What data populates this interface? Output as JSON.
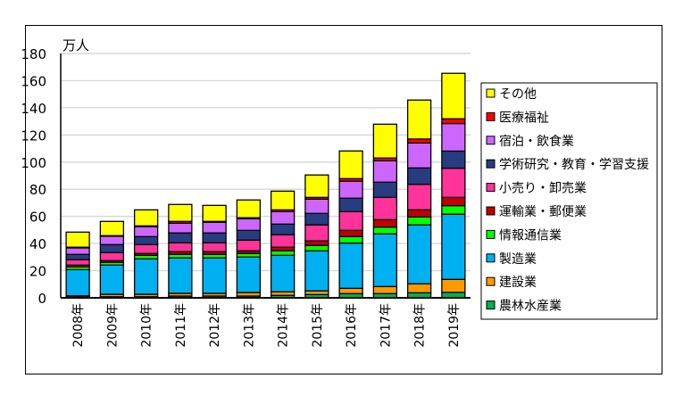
{
  "chart_data": {
    "type": "bar",
    "stacked": true,
    "unit_label": "万人",
    "categories": [
      "2008年",
      "2009年",
      "2010年",
      "2011年",
      "2012年",
      "2013年",
      "2014年",
      "2015年",
      "2016年",
      "2017年",
      "2018年",
      "2019年"
    ],
    "ylim": [
      0,
      180
    ],
    "yticks": [
      0,
      20,
      40,
      60,
      80,
      100,
      120,
      140,
      160,
      180
    ],
    "grid": true,
    "legend_position": "right",
    "series": [
      {
        "name": "農林水産業",
        "color": "#00B050",
        "values": [
          1.0,
          0.8,
          0.8,
          1.3,
          1.3,
          1.3,
          1.8,
          2.4,
          3.1,
          3.1,
          3.7,
          4.0
        ]
      },
      {
        "name": "建設業",
        "color": "#FF9900",
        "values": [
          0.5,
          1.8,
          1.8,
          2.0,
          2.0,
          2.6,
          2.6,
          2.7,
          3.9,
          5.2,
          6.6,
          9.6
        ]
      },
      {
        "name": "製造業",
        "color": "#00B0F0",
        "values": [
          19.3,
          21.5,
          26.1,
          26.1,
          26.1,
          26.1,
          26.9,
          29.5,
          33.3,
          38.8,
          43.4,
          48.0
        ]
      },
      {
        "name": "情報通信業",
        "color": "#00FF00",
        "values": [
          2.0,
          2.0,
          2.6,
          2.6,
          2.6,
          2.7,
          3.3,
          4.0,
          4.8,
          5.0,
          5.9,
          6.3
        ]
      },
      {
        "name": "運輸業・郵便業",
        "color": "#C00000",
        "values": [
          1.3,
          1.3,
          1.4,
          2.0,
          2.0,
          1.9,
          2.7,
          3.3,
          4.6,
          5.5,
          5.2,
          6.1
        ]
      },
      {
        "name": "小売り・卸売業",
        "color": "#FF3399",
        "values": [
          4.0,
          5.9,
          6.5,
          6.5,
          6.5,
          7.9,
          9.2,
          11.8,
          13.8,
          16.4,
          18.8,
          21.5
        ]
      },
      {
        "name": "学術研究・教育・学習支援",
        "color": "#283C80",
        "values": [
          3.9,
          5.9,
          5.9,
          7.3,
          7.3,
          7.2,
          7.8,
          8.5,
          9.9,
          11.2,
          12.1,
          12.6
        ]
      },
      {
        "name": "宿泊・飲食業",
        "color": "#CC66FF",
        "values": [
          4.8,
          6.2,
          7.3,
          7.2,
          7.9,
          8.6,
          9.2,
          10.5,
          12.5,
          15.8,
          18.4,
          20.3
        ]
      },
      {
        "name": "医療福祉",
        "color": "#FF0000",
        "values": [
          0.5,
          0.4,
          0.6,
          1.3,
          0.6,
          0.7,
          1.3,
          1.3,
          1.9,
          2.0,
          2.9,
          3.5
        ]
      },
      {
        "name": "その他",
        "color": "#FFFF00",
        "values": [
          11.1,
          10.5,
          11.8,
          12.5,
          11.8,
          13.1,
          13.8,
          16.5,
          20.4,
          24.9,
          28.7,
          33.5
        ]
      }
    ]
  }
}
